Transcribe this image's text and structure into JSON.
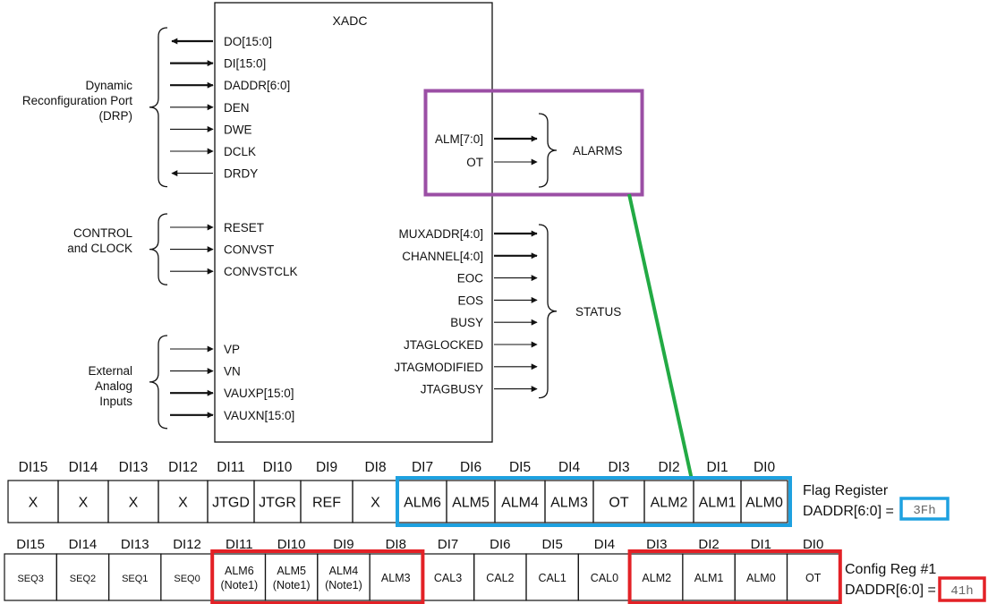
{
  "colors": {
    "alarm_box": "#9b4fa5",
    "green_link": "#22aa44",
    "flag_highlight": "#1ea1e0",
    "config_highlight": "#e32126"
  },
  "block": {
    "title": "XADC",
    "left_groups": [
      {
        "label": [
          "Dynamic",
          "Reconfiguration Port",
          "(DRP)"
        ],
        "pins": [
          {
            "name": "DO[15:0]",
            "dir": "out",
            "bus": true
          },
          {
            "name": "DI[15:0]",
            "dir": "in",
            "bus": true
          },
          {
            "name": "DADDR[6:0]",
            "dir": "in",
            "bus": true
          },
          {
            "name": "DEN",
            "dir": "in",
            "bus": false
          },
          {
            "name": "DWE",
            "dir": "in",
            "bus": false
          },
          {
            "name": "DCLK",
            "dir": "in",
            "bus": false
          },
          {
            "name": "DRDY",
            "dir": "out",
            "bus": false
          }
        ]
      },
      {
        "label": [
          "CONTROL",
          "and CLOCK"
        ],
        "pins": [
          {
            "name": "RESET",
            "dir": "in",
            "bus": false
          },
          {
            "name": "CONVST",
            "dir": "in",
            "bus": false
          },
          {
            "name": "CONVSTCLK",
            "dir": "in",
            "bus": false
          }
        ]
      },
      {
        "label": [
          "External",
          "Analog",
          "Inputs"
        ],
        "pins": [
          {
            "name": "VP",
            "dir": "in",
            "bus": false
          },
          {
            "name": "VN",
            "dir": "in",
            "bus": false
          },
          {
            "name": "VAUXP[15:0]",
            "dir": "in",
            "bus": true
          },
          {
            "name": "VAUXN[15:0]",
            "dir": "in",
            "bus": true
          }
        ]
      }
    ],
    "right_groups": [
      {
        "label": [
          "ALARMS"
        ],
        "pins": [
          {
            "name": "ALM[7:0]",
            "bus": true
          },
          {
            "name": "OT",
            "bus": false
          }
        ]
      },
      {
        "label": [
          "STATUS"
        ],
        "pins": [
          {
            "name": "MUXADDR[4:0]",
            "bus": true
          },
          {
            "name": "CHANNEL[4:0]",
            "bus": true
          },
          {
            "name": "EOC",
            "bus": false
          },
          {
            "name": "EOS",
            "bus": false
          },
          {
            "name": "BUSY",
            "bus": false
          },
          {
            "name": "JTAGLOCKED",
            "bus": false
          },
          {
            "name": "JTAGMODIFIED",
            "bus": false
          },
          {
            "name": "JTAGBUSY",
            "bus": false
          }
        ]
      }
    ]
  },
  "flag_register": {
    "bit_headers": [
      "DI15",
      "DI14",
      "DI13",
      "DI12",
      "DI11",
      "DI10",
      "DI9",
      "DI8",
      "DI7",
      "DI6",
      "DI5",
      "DI4",
      "DI3",
      "DI2",
      "DI1",
      "DI0"
    ],
    "cells": [
      "X",
      "X",
      "X",
      "X",
      "JTGD",
      "JTGR",
      "REF",
      "X",
      "ALM6",
      "ALM5",
      "ALM4",
      "ALM3",
      "OT",
      "ALM2",
      "ALM1",
      "ALM0"
    ],
    "name": "Flag Register",
    "address_label": "DADDR[6:0] =",
    "address_value": "3Fh"
  },
  "config_register": {
    "bit_headers": [
      "DI15",
      "DI14",
      "DI13",
      "DI12",
      "DI11",
      "DI10",
      "DI9",
      "DI8",
      "DI7",
      "DI6",
      "DI5",
      "DI4",
      "DI3",
      "DI2",
      "DI1",
      "DI0"
    ],
    "cells": [
      [
        "SEQ3"
      ],
      [
        "SEQ2"
      ],
      [
        "SEQ1"
      ],
      [
        "SEQ0"
      ],
      [
        "ALM6",
        "(Note1)"
      ],
      [
        "ALM5",
        "(Note1)"
      ],
      [
        "ALM4",
        "(Note1)"
      ],
      [
        "ALM3"
      ],
      [
        "CAL3"
      ],
      [
        "CAL2"
      ],
      [
        "CAL1"
      ],
      [
        "CAL0"
      ],
      [
        "ALM2"
      ],
      [
        "ALM1"
      ],
      [
        "ALM0"
      ],
      [
        "OT"
      ]
    ],
    "name": "Config Reg  #1",
    "address_label": "DADDR[6:0] =",
    "address_value": "41h"
  }
}
